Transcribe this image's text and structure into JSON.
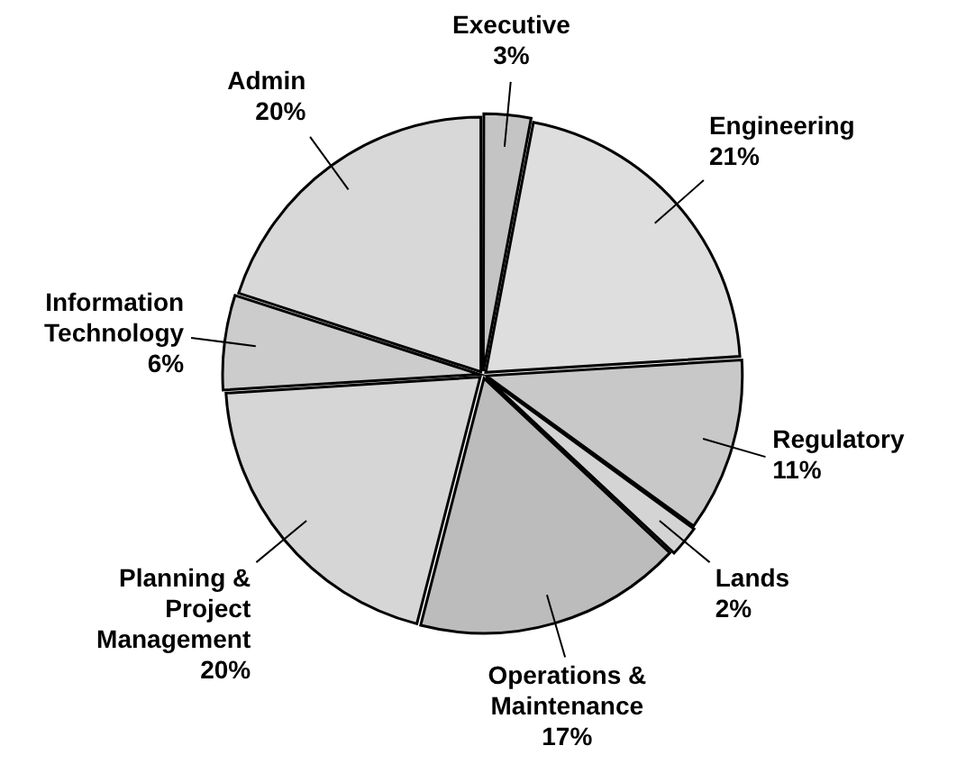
{
  "chart_data": {
    "type": "pie",
    "categories": [
      "Executive",
      "Engineering",
      "Regulatory",
      "Lands",
      "Operations & Maintenance",
      "Planning & Project Management",
      "Information Technology",
      "Admin"
    ],
    "values": [
      3,
      21,
      11,
      2,
      17,
      20,
      6,
      20
    ],
    "value_labels": [
      "3%",
      "21%",
      "11%",
      "2%",
      "17%",
      "20%",
      "6%",
      "20%"
    ],
    "colors": [
      "#c4c4c4",
      "#dedede",
      "#c8c8c8",
      "#d4d4d4",
      "#bcbcbc",
      "#d6d6d6",
      "#cccccc",
      "#d8d8d8"
    ],
    "legend": false
  }
}
